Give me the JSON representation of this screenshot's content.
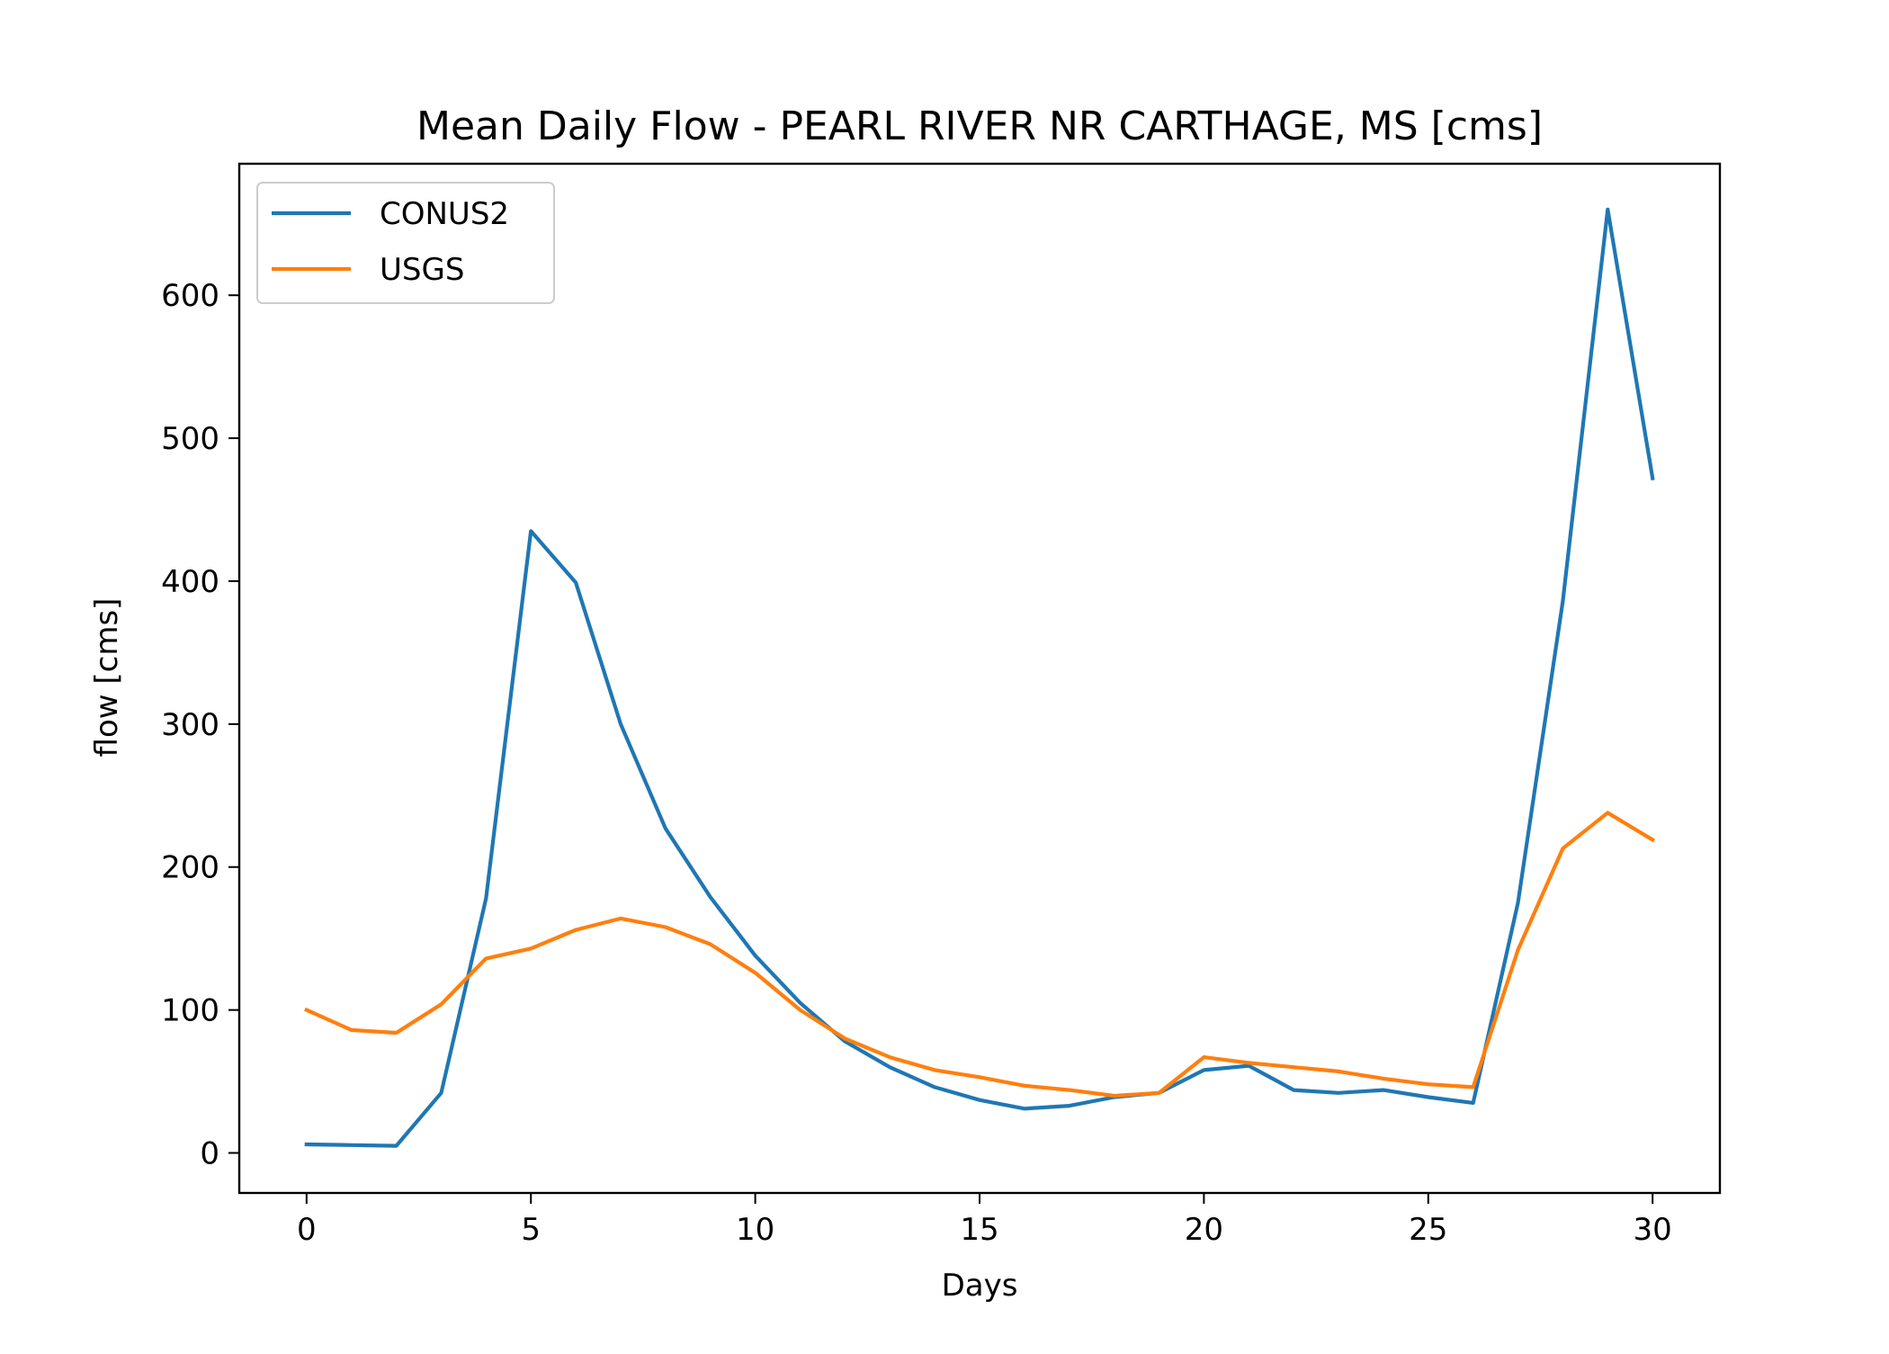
{
  "chart_data": {
    "type": "line",
    "title": "Mean Daily Flow - PEARL RIVER NR CARTHAGE, MS [cms]",
    "xlabel": "Days",
    "ylabel": "flow [cms]",
    "xlim": [
      -1.5,
      31.5
    ],
    "ylim": [
      -28,
      692
    ],
    "xticks": [
      0,
      5,
      10,
      15,
      20,
      25,
      30
    ],
    "yticks": [
      0,
      100,
      200,
      300,
      400,
      500,
      600
    ],
    "grid": false,
    "legend_position": "upper-left",
    "x": [
      0,
      1,
      2,
      3,
      4,
      5,
      6,
      7,
      8,
      9,
      10,
      11,
      12,
      13,
      14,
      15,
      16,
      17,
      18,
      19,
      20,
      21,
      22,
      23,
      24,
      25,
      26,
      27,
      28,
      29,
      30
    ],
    "series": [
      {
        "name": "CONUS2",
        "color": "#1f77b4",
        "values": [
          6,
          5.5,
          5,
          42,
          178,
          435,
          399,
          300,
          227,
          179,
          138,
          105,
          78,
          60,
          46,
          37,
          31,
          33,
          39,
          42,
          58,
          61,
          44,
          42,
          44,
          39,
          35,
          175,
          386,
          660,
          472
        ]
      },
      {
        "name": "USGS",
        "color": "#ff7f0e",
        "values": [
          100,
          86,
          84,
          104,
          136,
          143,
          156,
          164,
          158,
          146,
          126,
          100,
          80,
          67,
          58,
          53,
          47,
          44,
          40,
          42,
          67,
          63,
          60,
          57,
          52,
          48,
          46,
          142,
          213,
          238,
          219
        ]
      }
    ]
  }
}
